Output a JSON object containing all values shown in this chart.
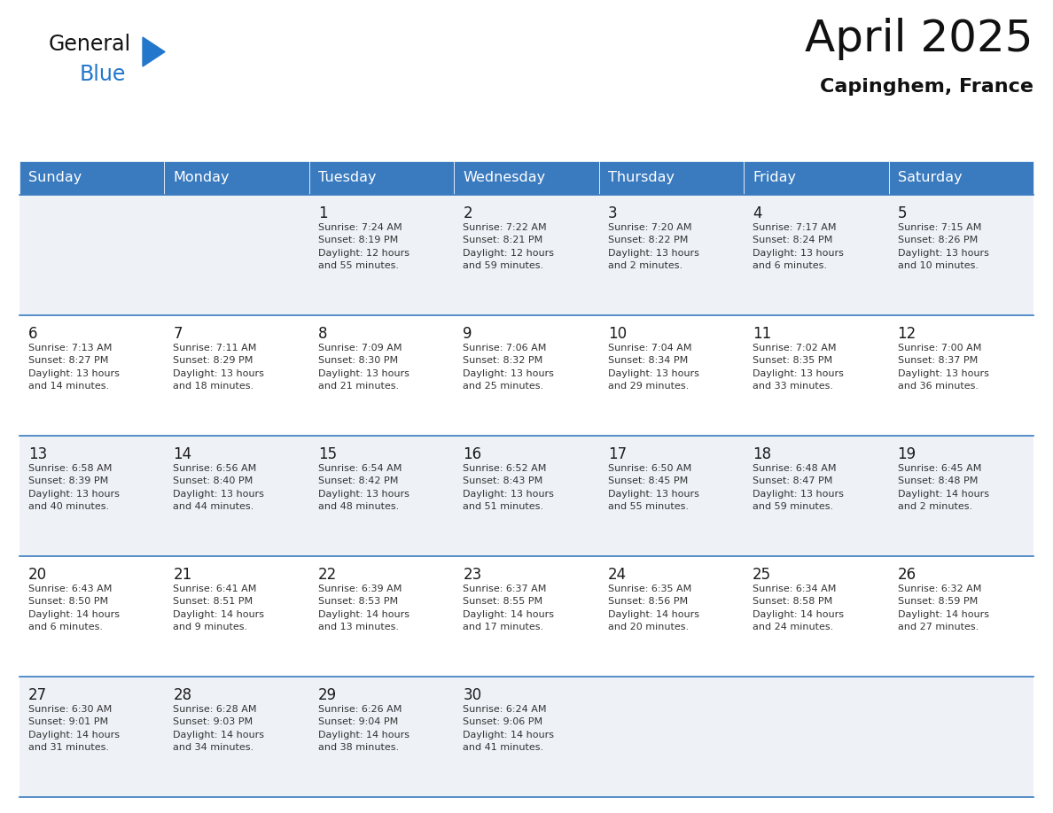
{
  "title": "April 2025",
  "subtitle": "Capinghem, France",
  "days_of_week": [
    "Sunday",
    "Monday",
    "Tuesday",
    "Wednesday",
    "Thursday",
    "Friday",
    "Saturday"
  ],
  "header_bg": "#3a7bbf",
  "header_text": "#ffffff",
  "row_bg_odd": "#eef2f7",
  "row_bg_even": "#ffffff",
  "grid_line_color": "#3a7bbf",
  "day_num_color": "#1a1a1a",
  "cell_text_color": "#333333",
  "title_color": "#111111",
  "subtitle_color": "#111111",
  "logo_general_color": "#111111",
  "logo_blue_color": "#2277cc",
  "logo_triangle_color": "#2277cc",
  "weeks": [
    [
      {
        "day": "",
        "info": ""
      },
      {
        "day": "",
        "info": ""
      },
      {
        "day": "1",
        "info": "Sunrise: 7:24 AM\nSunset: 8:19 PM\nDaylight: 12 hours\nand 55 minutes."
      },
      {
        "day": "2",
        "info": "Sunrise: 7:22 AM\nSunset: 8:21 PM\nDaylight: 12 hours\nand 59 minutes."
      },
      {
        "day": "3",
        "info": "Sunrise: 7:20 AM\nSunset: 8:22 PM\nDaylight: 13 hours\nand 2 minutes."
      },
      {
        "day": "4",
        "info": "Sunrise: 7:17 AM\nSunset: 8:24 PM\nDaylight: 13 hours\nand 6 minutes."
      },
      {
        "day": "5",
        "info": "Sunrise: 7:15 AM\nSunset: 8:26 PM\nDaylight: 13 hours\nand 10 minutes."
      }
    ],
    [
      {
        "day": "6",
        "info": "Sunrise: 7:13 AM\nSunset: 8:27 PM\nDaylight: 13 hours\nand 14 minutes."
      },
      {
        "day": "7",
        "info": "Sunrise: 7:11 AM\nSunset: 8:29 PM\nDaylight: 13 hours\nand 18 minutes."
      },
      {
        "day": "8",
        "info": "Sunrise: 7:09 AM\nSunset: 8:30 PM\nDaylight: 13 hours\nand 21 minutes."
      },
      {
        "day": "9",
        "info": "Sunrise: 7:06 AM\nSunset: 8:32 PM\nDaylight: 13 hours\nand 25 minutes."
      },
      {
        "day": "10",
        "info": "Sunrise: 7:04 AM\nSunset: 8:34 PM\nDaylight: 13 hours\nand 29 minutes."
      },
      {
        "day": "11",
        "info": "Sunrise: 7:02 AM\nSunset: 8:35 PM\nDaylight: 13 hours\nand 33 minutes."
      },
      {
        "day": "12",
        "info": "Sunrise: 7:00 AM\nSunset: 8:37 PM\nDaylight: 13 hours\nand 36 minutes."
      }
    ],
    [
      {
        "day": "13",
        "info": "Sunrise: 6:58 AM\nSunset: 8:39 PM\nDaylight: 13 hours\nand 40 minutes."
      },
      {
        "day": "14",
        "info": "Sunrise: 6:56 AM\nSunset: 8:40 PM\nDaylight: 13 hours\nand 44 minutes."
      },
      {
        "day": "15",
        "info": "Sunrise: 6:54 AM\nSunset: 8:42 PM\nDaylight: 13 hours\nand 48 minutes."
      },
      {
        "day": "16",
        "info": "Sunrise: 6:52 AM\nSunset: 8:43 PM\nDaylight: 13 hours\nand 51 minutes."
      },
      {
        "day": "17",
        "info": "Sunrise: 6:50 AM\nSunset: 8:45 PM\nDaylight: 13 hours\nand 55 minutes."
      },
      {
        "day": "18",
        "info": "Sunrise: 6:48 AM\nSunset: 8:47 PM\nDaylight: 13 hours\nand 59 minutes."
      },
      {
        "day": "19",
        "info": "Sunrise: 6:45 AM\nSunset: 8:48 PM\nDaylight: 14 hours\nand 2 minutes."
      }
    ],
    [
      {
        "day": "20",
        "info": "Sunrise: 6:43 AM\nSunset: 8:50 PM\nDaylight: 14 hours\nand 6 minutes."
      },
      {
        "day": "21",
        "info": "Sunrise: 6:41 AM\nSunset: 8:51 PM\nDaylight: 14 hours\nand 9 minutes."
      },
      {
        "day": "22",
        "info": "Sunrise: 6:39 AM\nSunset: 8:53 PM\nDaylight: 14 hours\nand 13 minutes."
      },
      {
        "day": "23",
        "info": "Sunrise: 6:37 AM\nSunset: 8:55 PM\nDaylight: 14 hours\nand 17 minutes."
      },
      {
        "day": "24",
        "info": "Sunrise: 6:35 AM\nSunset: 8:56 PM\nDaylight: 14 hours\nand 20 minutes."
      },
      {
        "day": "25",
        "info": "Sunrise: 6:34 AM\nSunset: 8:58 PM\nDaylight: 14 hours\nand 24 minutes."
      },
      {
        "day": "26",
        "info": "Sunrise: 6:32 AM\nSunset: 8:59 PM\nDaylight: 14 hours\nand 27 minutes."
      }
    ],
    [
      {
        "day": "27",
        "info": "Sunrise: 6:30 AM\nSunset: 9:01 PM\nDaylight: 14 hours\nand 31 minutes."
      },
      {
        "day": "28",
        "info": "Sunrise: 6:28 AM\nSunset: 9:03 PM\nDaylight: 14 hours\nand 34 minutes."
      },
      {
        "day": "29",
        "info": "Sunrise: 6:26 AM\nSunset: 9:04 PM\nDaylight: 14 hours\nand 38 minutes."
      },
      {
        "day": "30",
        "info": "Sunrise: 6:24 AM\nSunset: 9:06 PM\nDaylight: 14 hours\nand 41 minutes."
      },
      {
        "day": "",
        "info": ""
      },
      {
        "day": "",
        "info": ""
      },
      {
        "day": "",
        "info": ""
      }
    ]
  ]
}
